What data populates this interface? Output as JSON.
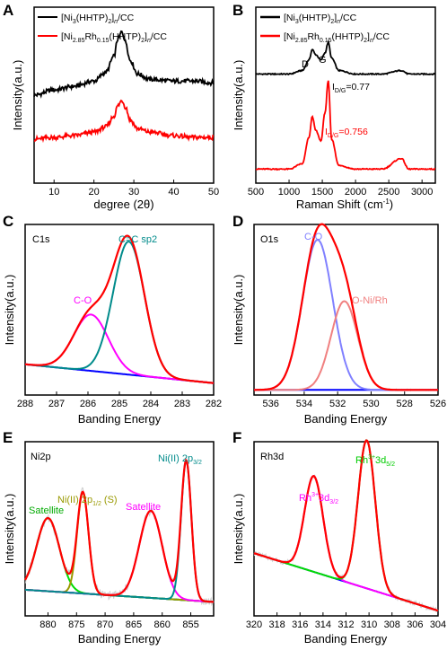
{
  "chart_data": [
    {
      "panel": "A",
      "type": "line",
      "xlabel": "degree (2θ)",
      "ylabel": "Intensity(a.u.)",
      "xlim": [
        5,
        50
      ],
      "xticks": [
        "10",
        "20",
        "30",
        "40",
        "50"
      ],
      "legend_placement": "top-left",
      "series": [
        {
          "name": "[Ni3(HHTP)2]n/CC",
          "color": "#000000",
          "x": [
            5,
            10,
            15,
            20,
            23,
            25,
            26,
            27,
            28,
            29,
            31,
            34,
            40,
            45,
            50
          ],
          "y": [
            0.5,
            0.53,
            0.55,
            0.58,
            0.63,
            0.72,
            0.82,
            0.86,
            0.8,
            0.7,
            0.62,
            0.59,
            0.58,
            0.58,
            0.57
          ]
        },
        {
          "name": "[Ni2.85Rh0.15(HHTP)2]n/CC",
          "color": "#ff0000",
          "x": [
            5,
            10,
            15,
            20,
            23,
            25,
            26,
            27,
            28,
            29,
            31,
            34,
            40,
            45,
            50
          ],
          "y": [
            0.25,
            0.26,
            0.27,
            0.29,
            0.32,
            0.38,
            0.44,
            0.47,
            0.43,
            0.36,
            0.31,
            0.29,
            0.27,
            0.26,
            0.26
          ]
        }
      ]
    },
    {
      "panel": "B",
      "type": "line",
      "xlabel": "Raman Shift (cm-1)",
      "ylabel": "Intensity(a.u.)",
      "xlim": [
        500,
        3200
      ],
      "xticks": [
        "500",
        "1000",
        "1500",
        "2000",
        "2500",
        "3000"
      ],
      "legend_placement": "top-left",
      "annotations": [
        "D",
        "G",
        "ID/G=0.77",
        "ID/G=0.756"
      ],
      "series": [
        {
          "name": "[Ni3(HHTP)2]n/CC",
          "color": "#000000",
          "x": [
            500,
            1000,
            1200,
            1300,
            1350,
            1400,
            1480,
            1540,
            1590,
            1640,
            1750,
            2000,
            2400,
            2690,
            2800,
            3200
          ],
          "y": [
            0.62,
            0.62,
            0.64,
            0.7,
            0.76,
            0.73,
            0.7,
            0.74,
            0.8,
            0.71,
            0.64,
            0.62,
            0.62,
            0.64,
            0.62,
            0.62
          ]
        },
        {
          "name": "[Ni2.85Rh0.15(HHTP)2]n/CC",
          "color": "#ff0000",
          "x": [
            500,
            1000,
            1200,
            1300,
            1350,
            1400,
            1480,
            1540,
            1590,
            1640,
            1750,
            2000,
            2400,
            2690,
            2800,
            3200
          ],
          "y": [
            0.08,
            0.08,
            0.11,
            0.26,
            0.38,
            0.3,
            0.24,
            0.4,
            0.58,
            0.25,
            0.1,
            0.08,
            0.08,
            0.14,
            0.08,
            0.08
          ]
        }
      ]
    },
    {
      "panel": "C",
      "type": "line",
      "title": "C1s",
      "xlabel": "Banding Energy",
      "ylabel": "Intensity(a.u.)",
      "xlim": [
        288,
        282
      ],
      "xticks": [
        "288",
        "287",
        "286",
        "285",
        "284",
        "283",
        "282"
      ],
      "series": [
        {
          "name": "C-O",
          "color": "#ff00ff",
          "center": 285.9,
          "height": 0.33,
          "width": 0.55
        },
        {
          "name": "C=C sp2",
          "color": "#008b8b",
          "center": 284.7,
          "height": 0.78,
          "width": 0.5
        },
        {
          "name": "envelope",
          "color": "#ff0000"
        },
        {
          "name": "background",
          "color": "#0000ff",
          "background": [
            0.18,
            0.07
          ]
        }
      ]
    },
    {
      "panel": "D",
      "type": "line",
      "title": "O1s",
      "xlabel": "Banding Energy",
      "ylabel": "Intensity(a.u.)",
      "xlim": [
        537,
        526
      ],
      "xticks": [
        "536",
        "534",
        "532",
        "530",
        "528",
        "526"
      ],
      "series": [
        {
          "name": "C-O",
          "color": "#8080ff",
          "center": 533.2,
          "height": 0.88,
          "width": 0.9
        },
        {
          "name": "O-Ni/Rh",
          "color": "#f08080",
          "center": 531.6,
          "height": 0.52,
          "width": 0.8
        },
        {
          "name": "envelope",
          "color": "#ff0000"
        },
        {
          "name": "background",
          "color": "#0000ff",
          "background": [
            0.03,
            0.03
          ]
        }
      ]
    },
    {
      "panel": "E",
      "type": "line",
      "title": "Ni2p",
      "xlabel": "Banding Energy",
      "ylabel": "Intensity(a.u.)",
      "xlim": [
        884,
        851
      ],
      "xticks": [
        "880",
        "875",
        "870",
        "865",
        "860",
        "855"
      ],
      "series": [
        {
          "name": "Satellite",
          "color": "#00dd00",
          "center": 880.0,
          "height": 0.42,
          "width": 2.0
        },
        {
          "name": "Ni(II) 2p1/2 (S)",
          "color": "#999900",
          "center": 873.9,
          "height": 0.58,
          "width": 1.0
        },
        {
          "name": "Satellite",
          "color": "#ff00ff",
          "center": 862.0,
          "height": 0.5,
          "width": 2.0
        },
        {
          "name": "Ni(II) 2p3/2",
          "color": "#008b8b",
          "center": 855.8,
          "height": 0.8,
          "width": 0.9
        },
        {
          "name": "envelope",
          "color": "#ff0000"
        },
        {
          "name": "background",
          "color": "#0000ff",
          "background": [
            0.15,
            0.08
          ]
        }
      ]
    },
    {
      "panel": "F",
      "type": "line",
      "title": "Rh3d",
      "xlabel": "Banding Energy",
      "ylabel": "Intensity(a.u.)",
      "xlim": [
        320,
        304
      ],
      "xticks": [
        "320",
        "318",
        "316",
        "314",
        "312",
        "310",
        "308",
        "306",
        "304"
      ],
      "series": [
        {
          "name": "Rh3+3d3/2",
          "color": "#ff00ff",
          "center": 314.8,
          "height": 0.55,
          "width": 0.8
        },
        {
          "name": "Rh3+3d5/2",
          "color": "#00dd00",
          "center": 310.2,
          "height": 0.85,
          "width": 0.75
        },
        {
          "name": "envelope",
          "color": "#ff0000"
        },
        {
          "name": "background",
          "color": "#0000ff",
          "background": [
            0.36,
            0.03
          ]
        }
      ]
    }
  ]
}
